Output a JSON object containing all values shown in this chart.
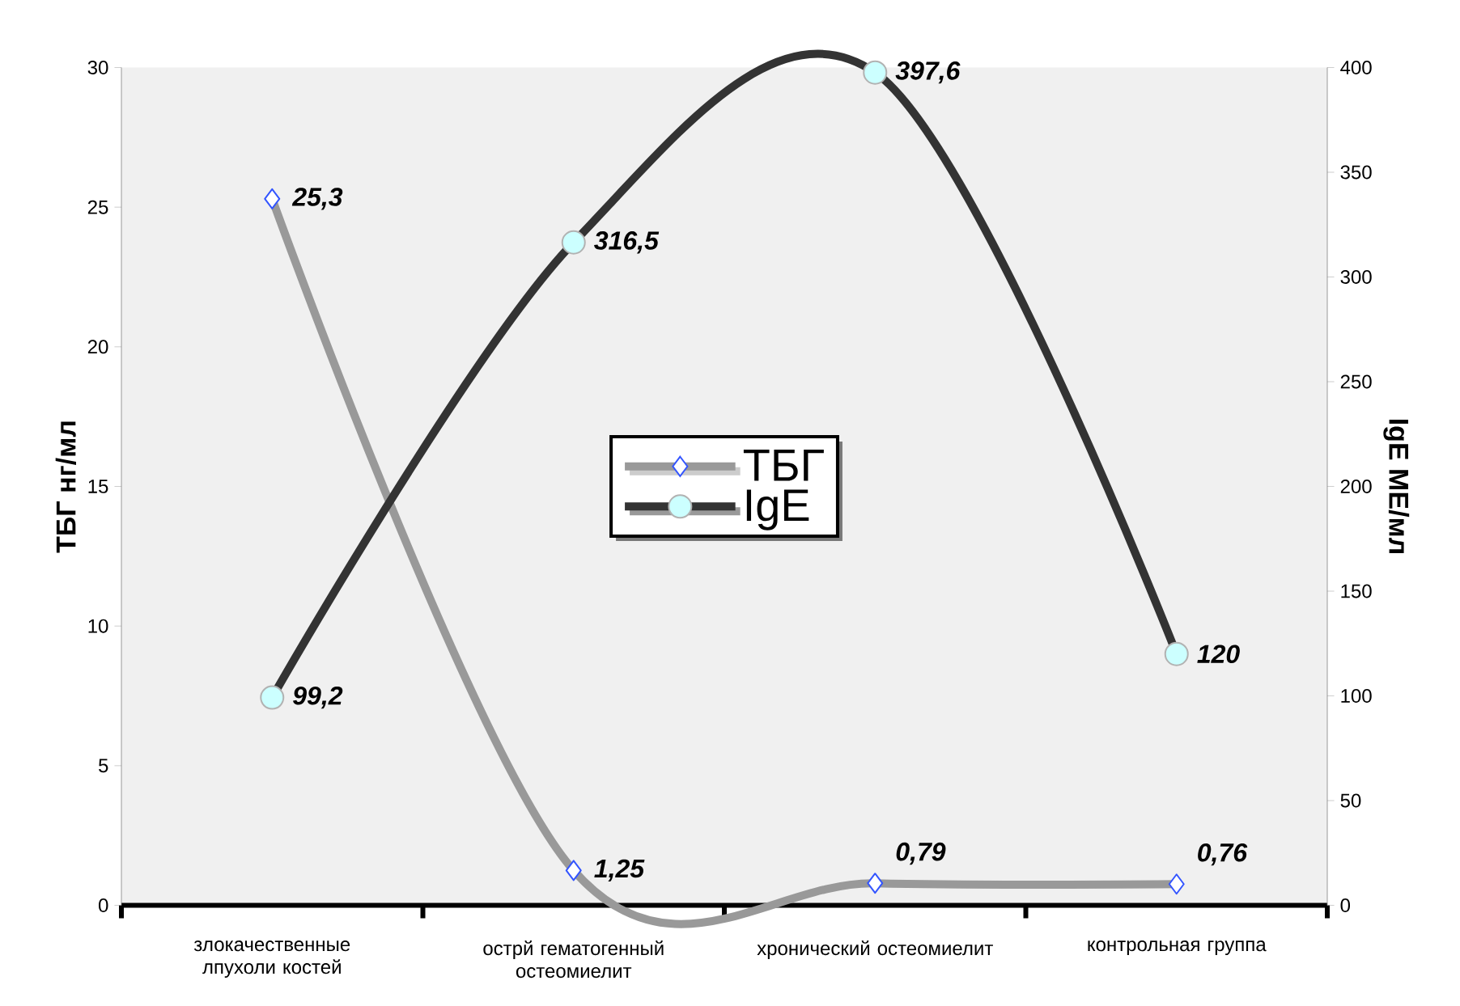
{
  "chart_data": {
    "type": "line",
    "categories": [
      "злокачественные лпухоли костей",
      "острй гематогенный остеомиелит",
      "хронический остеомиелит",
      "контрольная группа"
    ],
    "series": [
      {
        "name": "ТБГ",
        "color": "#999999",
        "values": [
          25.3,
          1.25,
          0.79,
          0.76
        ],
        "value_labels": [
          "25,3",
          "1,25",
          "0,79",
          "0,76"
        ],
        "marker": "diamond"
      },
      {
        "name": "IgE",
        "color": "#333333",
        "values": [
          99.2,
          316.5,
          397.6,
          120
        ],
        "value_labels": [
          "99,2",
          "316,5",
          "397,6",
          "120"
        ],
        "marker": "circle",
        "axis": "y2"
      }
    ],
    "ylabel": "ТБГ нг/мл",
    "y2label": "IgE МЕ/мл",
    "ylim": [
      0,
      30
    ],
    "yticks": [
      0,
      5,
      10,
      15,
      20,
      25,
      30
    ],
    "y2lim": [
      0,
      400
    ],
    "y2ticks": [
      0,
      50,
      100,
      150,
      200,
      250,
      300,
      350,
      400
    ],
    "grid": false,
    "legend": "center"
  }
}
